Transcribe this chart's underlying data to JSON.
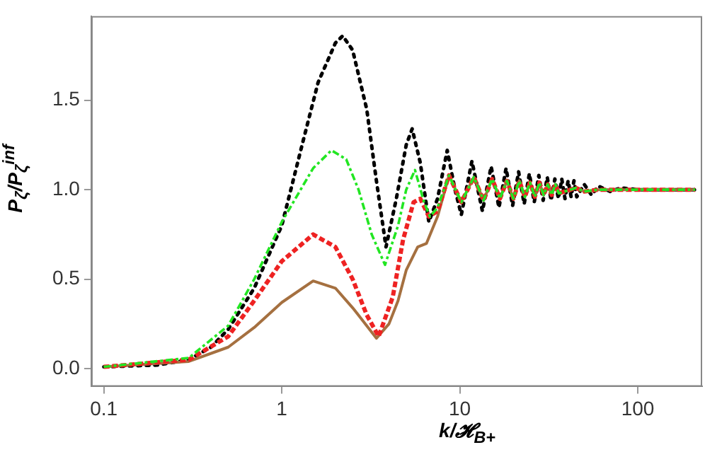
{
  "chart_data": {
    "type": "line",
    "xlabel": "k/𝓗$_{B+}$",
    "ylabel": "P$_{ζ}$/P$_{ζ}$$^{inf}$",
    "log": "x",
    "xlim": [
      0.085,
      230
    ],
    "xticks": [
      0.1,
      1,
      10,
      100
    ],
    "ylim": [
      -0.1,
      1.97
    ],
    "yticks": [
      {
        "value": 0,
        "label": "0.0"
      },
      0.5,
      {
        "value": 1,
        "label": "1.0"
      },
      1.5
    ],
    "grid": false,
    "legend": false,
    "marker": "none",
    "series": [
      {
        "color": "#000000",
        "line_style": "dotted",
        "x": [
          0.1,
          0.2,
          0.3,
          0.4,
          0.5,
          0.7,
          1.0,
          1.3,
          1.6,
          2.0,
          2.2,
          2.5,
          3.0,
          3.4,
          3.85,
          4.4,
          5.0,
          5.4,
          6.0,
          6.7,
          7.5,
          8.5,
          9.4,
          10.2,
          11.7,
          13.4,
          15,
          16.6,
          18.2,
          19.8,
          21.4,
          23,
          24.6,
          26.2,
          27.8,
          29.4,
          31,
          32.6,
          34.2,
          35.8,
          37.4,
          39,
          40.6,
          42.2,
          43.8,
          45.4,
          50,
          55,
          60,
          70,
          80,
          100,
          150,
          210
        ],
        "values": [
          0.01,
          0.02,
          0.05,
          0.12,
          0.22,
          0.45,
          0.8,
          1.25,
          1.6,
          1.82,
          1.86,
          1.78,
          1.45,
          1.05,
          0.68,
          0.95,
          1.25,
          1.34,
          1.15,
          0.82,
          0.95,
          1.22,
          1.0,
          0.86,
          1.16,
          0.88,
          1.13,
          0.9,
          1.12,
          0.91,
          1.1,
          0.92,
          1.09,
          0.93,
          1.08,
          0.94,
          1.07,
          0.94,
          1.06,
          0.95,
          1.06,
          0.95,
          1.05,
          0.96,
          1.05,
          0.96,
          1.03,
          0.97,
          1.02,
          0.99,
          1.01,
          1.0,
          1.0,
          1.0
        ]
      },
      {
        "color": "#22e622",
        "line_style": "dashdot",
        "x": [
          0.1,
          0.3,
          0.5,
          0.7,
          1.0,
          1.5,
          1.9,
          2.3,
          2.7,
          3.2,
          3.8,
          4.5,
          5.0,
          5.6,
          6.3,
          6.8,
          7.5,
          8.7,
          10.2,
          12,
          13.6,
          15.2,
          16.8,
          18.4,
          20,
          21.6,
          23.2,
          24.8,
          26.4,
          28,
          29.6,
          31.2,
          32.8,
          34.4,
          36,
          45,
          50,
          60,
          100,
          210
        ],
        "values": [
          0.01,
          0.06,
          0.24,
          0.5,
          0.82,
          1.12,
          1.22,
          1.17,
          1.0,
          0.75,
          0.58,
          0.8,
          1.0,
          1.11,
          0.93,
          0.85,
          0.9,
          1.08,
          0.93,
          1.07,
          0.94,
          1.06,
          0.95,
          1.05,
          0.95,
          1.05,
          0.96,
          1.04,
          0.96,
          1.04,
          0.97,
          1.03,
          0.97,
          1.03,
          0.98,
          1.01,
          0.99,
          1.0,
          1.0,
          1.0
        ]
      },
      {
        "color": "#ee2222",
        "line_style": "dashed",
        "x": [
          0.1,
          0.3,
          0.5,
          0.7,
          1.0,
          1.5,
          2.0,
          2.5,
          3.0,
          3.5,
          4.2,
          4.8,
          5.5,
          6.0,
          6.7,
          7.5,
          8.7,
          10.2,
          12,
          13.6,
          15.2,
          16.8,
          18.4,
          20,
          21.6,
          23.2,
          24.8,
          26.4,
          28,
          29.6,
          31.2,
          32.8,
          34.4,
          36,
          45,
          50,
          60,
          100,
          210
        ],
        "values": [
          0.01,
          0.05,
          0.18,
          0.38,
          0.6,
          0.75,
          0.68,
          0.5,
          0.3,
          0.18,
          0.4,
          0.72,
          0.93,
          0.95,
          0.85,
          0.88,
          1.08,
          0.93,
          1.07,
          0.94,
          1.06,
          0.95,
          1.05,
          0.95,
          1.05,
          0.96,
          1.04,
          0.96,
          1.04,
          0.97,
          1.03,
          0.97,
          1.03,
          0.98,
          1.01,
          0.99,
          1.0,
          1.0,
          1.0
        ]
      },
      {
        "color": "#a57040",
        "line_style": "solid",
        "x": [
          0.1,
          0.3,
          0.5,
          0.7,
          1.0,
          1.5,
          2.0,
          2.5,
          3.0,
          3.4,
          4.0,
          4.5,
          5.0,
          5.8,
          6.5,
          7.5,
          8.7,
          10.2,
          12,
          13.6,
          15.2,
          16.8,
          18.4,
          20,
          21.6,
          23.2,
          24.8,
          26.4,
          28,
          29.6,
          31.2,
          32.8,
          34.4,
          36,
          45,
          50,
          60,
          100,
          210
        ],
        "values": [
          0.01,
          0.04,
          0.12,
          0.23,
          0.37,
          0.49,
          0.45,
          0.34,
          0.24,
          0.17,
          0.25,
          0.38,
          0.55,
          0.68,
          0.7,
          0.85,
          1.08,
          0.93,
          1.07,
          0.94,
          1.06,
          0.95,
          1.05,
          0.95,
          1.05,
          0.96,
          1.04,
          0.96,
          1.04,
          0.97,
          1.03,
          0.97,
          1.03,
          0.98,
          1.01,
          0.99,
          1.0,
          1.0,
          1.0
        ]
      }
    ]
  }
}
